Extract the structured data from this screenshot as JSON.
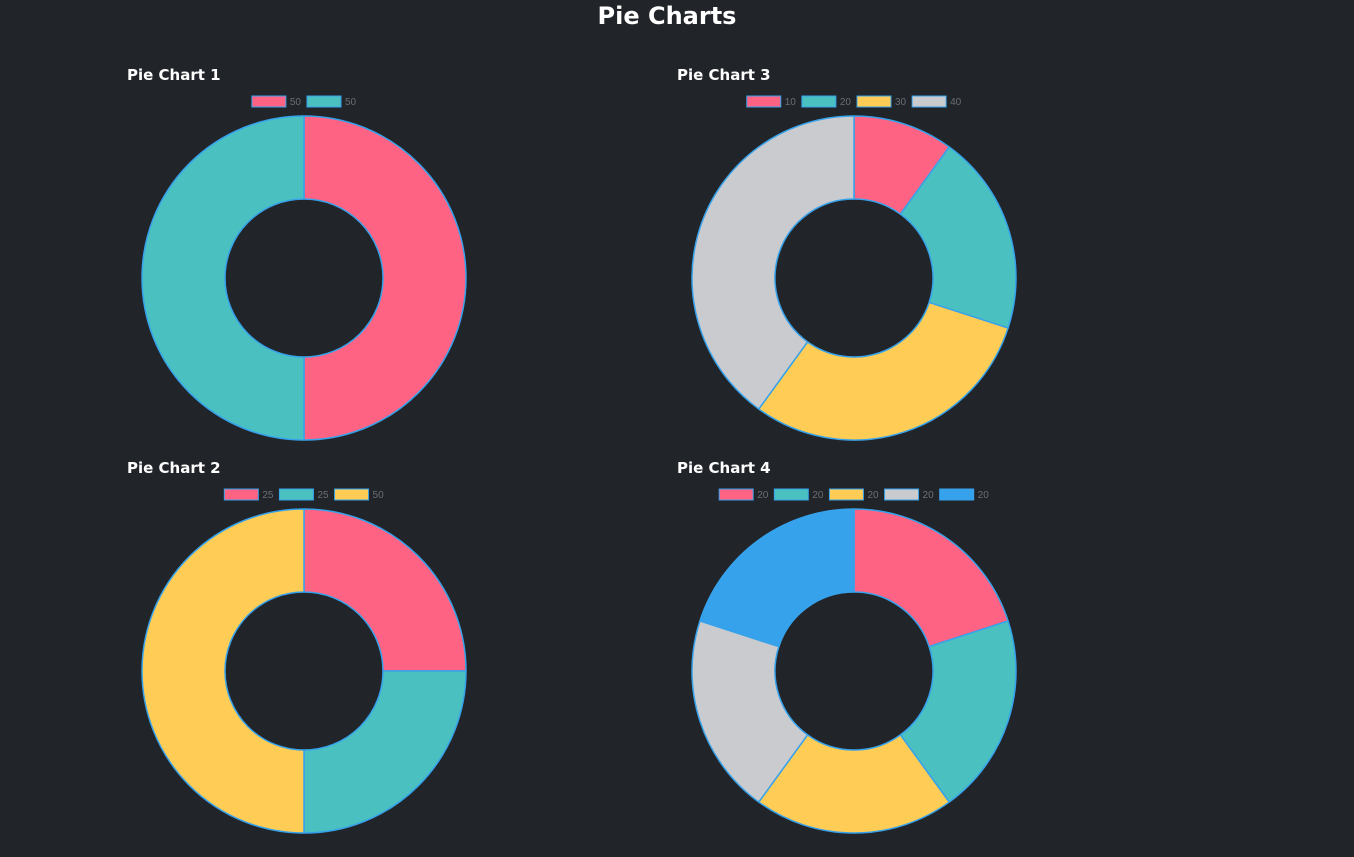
{
  "page": {
    "title": "Pie Charts"
  },
  "colors": {
    "background": "#212429",
    "border": "#36a2eb"
  },
  "chart_data": [
    {
      "type": "pie",
      "variant": "doughnut",
      "title": "Pie Chart 1",
      "categories": [
        "50",
        "50"
      ],
      "values": [
        50,
        50
      ],
      "colors": [
        "#ff6384",
        "#4bc0c0"
      ],
      "legend": "top"
    },
    {
      "type": "pie",
      "variant": "doughnut",
      "title": "Pie Chart 3",
      "categories": [
        "10",
        "20",
        "30",
        "40"
      ],
      "values": [
        10,
        20,
        30,
        40
      ],
      "colors": [
        "#ff6384",
        "#4bc0c0",
        "#ffcd56",
        "#c9cbcf"
      ],
      "legend": "top"
    },
    {
      "type": "pie",
      "variant": "doughnut",
      "title": "Pie Chart 2",
      "categories": [
        "25",
        "25",
        "50"
      ],
      "values": [
        25,
        25,
        50
      ],
      "colors": [
        "#ff6384",
        "#4bc0c0",
        "#ffcd56"
      ],
      "legend": "top"
    },
    {
      "type": "pie",
      "variant": "doughnut",
      "title": "Pie Chart 4",
      "categories": [
        "20",
        "20",
        "20",
        "20",
        "20"
      ],
      "values": [
        20,
        20,
        20,
        20,
        20
      ],
      "colors": [
        "#ff6384",
        "#4bc0c0",
        "#ffcd56",
        "#c9cbcf",
        "#36a2eb"
      ],
      "legend": "top"
    }
  ]
}
